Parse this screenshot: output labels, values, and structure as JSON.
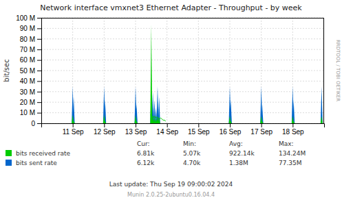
{
  "chart_data": {
    "type": "area",
    "title": "Network interface vmxnet3 Ethernet Adapter - Throughput - by week",
    "y_label": "bit/sec",
    "xlim": [
      10.0,
      19.0
    ],
    "xticks": [
      {
        "value": 11,
        "label": "11 Sep"
      },
      {
        "value": 12,
        "label": "12 Sep"
      },
      {
        "value": 13,
        "label": "13 Sep"
      },
      {
        "value": 14,
        "label": "14 Sep"
      },
      {
        "value": 15,
        "label": "15 Sep"
      },
      {
        "value": 16,
        "label": "16 Sep"
      },
      {
        "value": 17,
        "label": "17 Sep"
      },
      {
        "value": 18,
        "label": "18 Sep"
      }
    ],
    "ylim": [
      0,
      100000000
    ],
    "yticks": [
      0,
      {
        "value": 10000000,
        "label": "10 M"
      },
      {
        "value": 20000000,
        "label": "20 M"
      },
      {
        "value": 30000000,
        "label": "30 M"
      },
      {
        "value": 40000000,
        "label": "40 M"
      },
      {
        "value": 50000000,
        "label": "50 M"
      },
      {
        "value": 60000000,
        "label": "60 M"
      },
      {
        "value": 70000000,
        "label": "70 M"
      },
      {
        "value": 80000000,
        "label": "80 M"
      },
      {
        "value": 90000000,
        "label": "90 M"
      },
      {
        "value": 100000000,
        "label": "100 M"
      }
    ],
    "grid": true,
    "stat_headers": [
      "Cur:",
      "Min:",
      "Avg:",
      "Max:"
    ],
    "series": [
      {
        "name": "bits received rate",
        "type": "spike",
        "color": "#00cc00",
        "x": [
          11.0,
          11.03,
          12.0,
          12.03,
          13.0,
          13.03,
          13.5,
          13.55,
          13.6,
          13.65,
          13.7,
          13.75,
          16.0,
          16.03,
          17.0,
          17.03,
          18.0,
          18.03,
          18.92
        ],
        "values": [
          8000000,
          2000000,
          8000000,
          2000000,
          8000000,
          2000000,
          93000000,
          8000000,
          6000000,
          5000000,
          7000000,
          6000000,
          7000000,
          2000000,
          7000000,
          2000000,
          7000000,
          2000000,
          7000000
        ],
        "stats": [
          "6.81k",
          "5.07k",
          "922.14k",
          "134.24M"
        ]
      },
      {
        "name": "bits sent rate",
        "type": "spike",
        "color": "#0066cc",
        "x": [
          11.0,
          11.03,
          12.0,
          12.03,
          13.0,
          13.03,
          13.5,
          13.55,
          13.6,
          13.65,
          13.7,
          13.75,
          16.0,
          16.03,
          17.0,
          17.03,
          18.0,
          18.03,
          18.92
        ],
        "values": [
          35000000,
          25000000,
          35000000,
          22000000,
          35000000,
          18000000,
          35000000,
          30000000,
          22000000,
          15000000,
          35000000,
          25000000,
          35000000,
          22000000,
          35000000,
          18000000,
          35000000,
          22000000,
          35000000
        ],
        "stats": [
          "6.12k",
          "4.70k",
          "1.38M",
          "77.35M"
        ]
      },
      {
        "type": "line",
        "color": "#00cc00",
        "x": [
          13.48,
          13.52,
          13.56,
          13.6,
          13.64,
          13.68,
          13.72,
          13.76,
          13.8,
          13.84,
          13.88,
          13.92,
          13.96
        ],
        "values": [
          8000000,
          6000000,
          5000000,
          7000000,
          5000000,
          6000000,
          5000000,
          4000000,
          5000000,
          4000000,
          3000000,
          3000000,
          2000000
        ]
      }
    ],
    "annotations": [
      "RRDTOOL / TOBI OETIKER",
      "Last update:  Thu Sep 19 09:00:02 2024",
      "Munin 2.0.25-2ubuntu0.16.04.4"
    ]
  }
}
